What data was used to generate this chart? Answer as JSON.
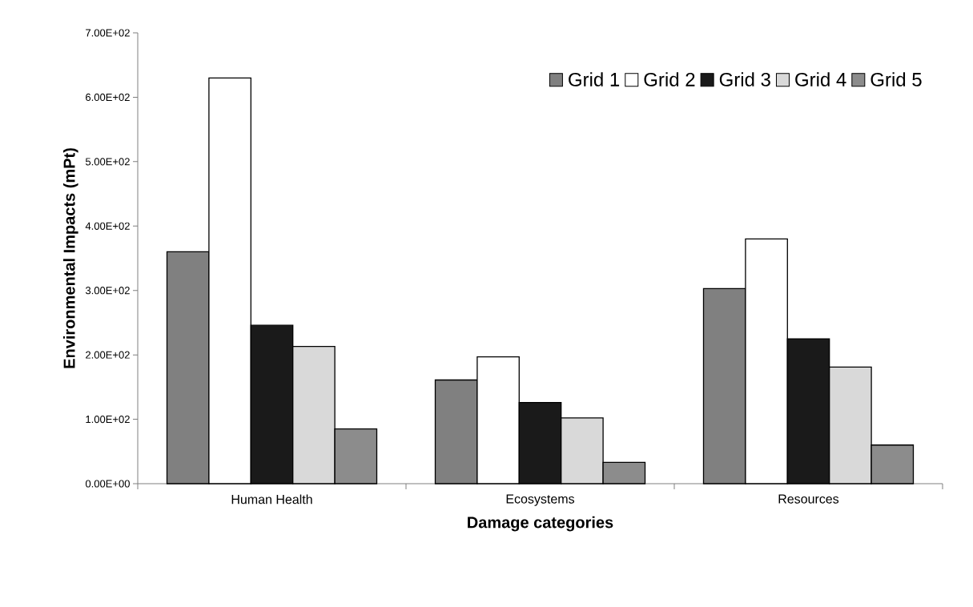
{
  "chart_data": {
    "type": "bar",
    "xlabel": "Damage categories",
    "ylabel": "Environmental Impacts (mPt)",
    "categories": [
      "Human Health",
      "Ecosystems",
      "Resources"
    ],
    "series": [
      {
        "name": "Grid 1",
        "color": "#808080",
        "values": [
          360,
          161,
          303
        ]
      },
      {
        "name": "Grid 2",
        "color": "#ffffff",
        "values": [
          630,
          197,
          380
        ]
      },
      {
        "name": "Grid 3",
        "color": "#1a1a1a",
        "values": [
          246,
          126,
          225
        ]
      },
      {
        "name": "Grid 4",
        "color": "#d9d9d9",
        "values": [
          213,
          102,
          181
        ]
      },
      {
        "name": "Grid 5",
        "color": "#8c8c8c",
        "values": [
          85,
          33,
          60
        ]
      }
    ],
    "ylim": [
      0,
      700
    ],
    "yticks": [
      {
        "value": 0,
        "label": "0.00E+00"
      },
      {
        "value": 100,
        "label": "1.00E+02"
      },
      {
        "value": 200,
        "label": "2.00E+02"
      },
      {
        "value": 300,
        "label": "3.00E+02"
      },
      {
        "value": 400,
        "label": "4.00E+02"
      },
      {
        "value": 500,
        "label": "5.00E+02"
      },
      {
        "value": 600,
        "label": "6.00E+02"
      },
      {
        "value": 700,
        "label": "7.00E+02"
      }
    ],
    "grid": false,
    "legend": "top right"
  }
}
